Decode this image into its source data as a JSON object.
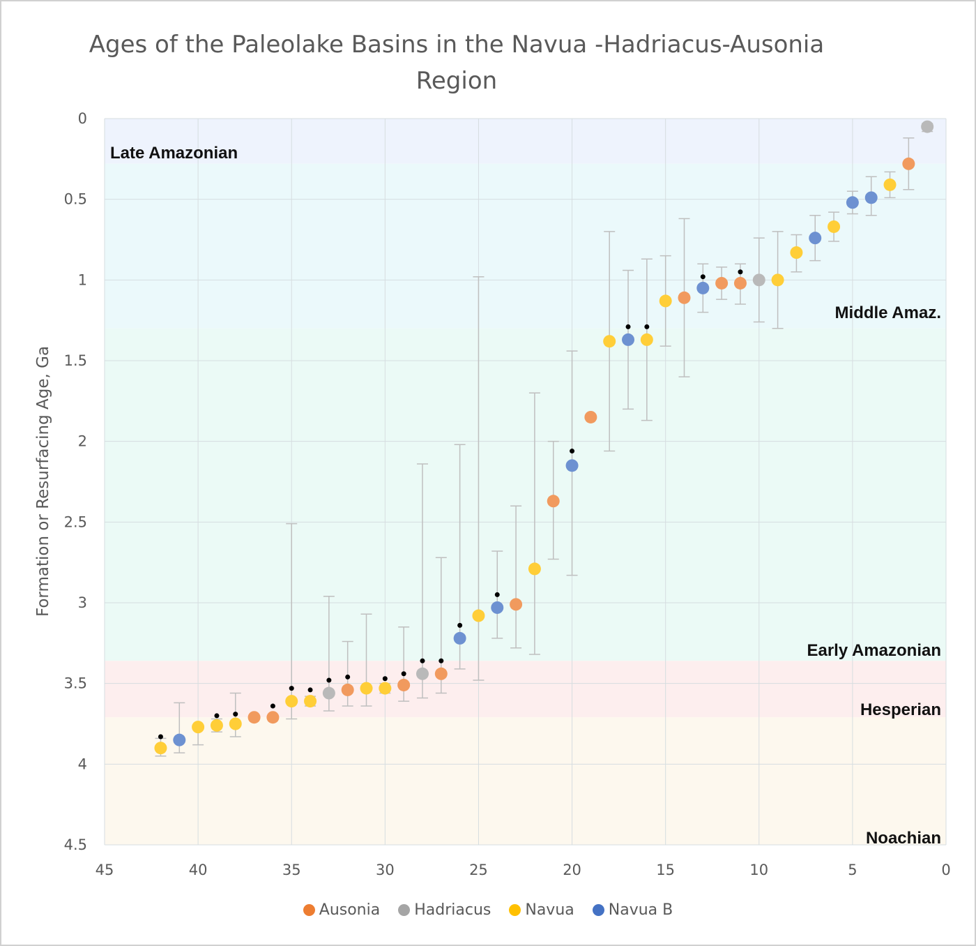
{
  "chart_data": {
    "type": "scatter",
    "title": "Ages of the Paleolake Basins in the Navua -Hadriacus-Ausonia Region",
    "ylabel": "Formation or Resurfacing Age, Ga",
    "xlabel": "",
    "xlim": [
      45,
      0
    ],
    "ylim": [
      0,
      4.5
    ],
    "x_reversed": true,
    "y_reversed": true,
    "x_ticks": [
      "45",
      "40",
      "35",
      "30",
      "25",
      "20",
      "15",
      "10",
      "5",
      "0"
    ],
    "y_ticks": [
      "0",
      "0.5",
      "1",
      "1.5",
      "2",
      "2.5",
      "3",
      "3.5",
      "4",
      "4.5"
    ],
    "grid": true,
    "legend_position": "bottom",
    "colors": {
      "Ausonia": "#ed7d31",
      "Hadriacus": "#a5a5a5",
      "Navua": "#ffc000",
      "Navua B": "#4472c4",
      "errorbar": "#bfbfbf",
      "marker": "#000000"
    },
    "bands": [
      {
        "label": "Late Amazonian",
        "from": 0,
        "to": 0.28,
        "color": "#eef3fd",
        "label_align": "left"
      },
      {
        "label": "Middle Amaz.",
        "from": 0.28,
        "to": 1.3,
        "color": "#ebf9fb",
        "label_align": "right"
      },
      {
        "label": "Early Amazonian",
        "from": 1.3,
        "to": 3.36,
        "color": "#ebfaf6",
        "label_align": "right"
      },
      {
        "label": "Hesperian",
        "from": 3.36,
        "to": 3.71,
        "color": "#fdeeee",
        "label_align": "right"
      },
      {
        "label": "Noachian",
        "from": 3.71,
        "to": 4.5,
        "color": "#fdf8ee",
        "label_align": "right"
      }
    ],
    "series": [
      {
        "name": "Ausonia",
        "points": [
          {
            "x": 37,
            "y": 3.71
          },
          {
            "x": 36,
            "y": 3.71,
            "marker": 3.64
          },
          {
            "x": 32,
            "y": 3.54,
            "lo": 3.24,
            "hi": 3.64,
            "marker": 3.46
          },
          {
            "x": 29,
            "y": 3.51,
            "lo": 3.15,
            "hi": 3.61,
            "marker": 3.44
          },
          {
            "x": 27,
            "y": 3.44,
            "lo": 2.72,
            "hi": 3.56,
            "marker": 3.36
          },
          {
            "x": 23,
            "y": 3.01,
            "lo": 2.4,
            "hi": 3.28
          },
          {
            "x": 21,
            "y": 2.37,
            "lo": 2.0,
            "hi": 2.73
          },
          {
            "x": 19,
            "y": 1.85
          },
          {
            "x": 14,
            "y": 1.11,
            "lo": 0.62,
            "hi": 1.6
          },
          {
            "x": 12,
            "y": 1.02,
            "lo": 0.92,
            "hi": 1.12
          },
          {
            "x": 11,
            "y": 1.02,
            "lo": 0.9,
            "hi": 1.15,
            "marker": 0.95
          },
          {
            "x": 2,
            "y": 0.28,
            "lo": 0.12,
            "hi": 0.44
          }
        ]
      },
      {
        "name": "Hadriacus",
        "points": [
          {
            "x": 33,
            "y": 3.56,
            "lo": 2.96,
            "hi": 3.67,
            "marker": 3.48
          },
          {
            "x": 28,
            "y": 3.44,
            "lo": 2.14,
            "hi": 3.59,
            "marker": 3.36
          },
          {
            "x": 10,
            "y": 1.0,
            "lo": 0.74,
            "hi": 1.26
          },
          {
            "x": 1,
            "y": 0.05,
            "lo": 0.03,
            "hi": 0.08
          }
        ]
      },
      {
        "name": "Navua",
        "points": [
          {
            "x": 42,
            "y": 3.9,
            "lo": 3.84,
            "hi": 3.95,
            "marker": 3.83
          },
          {
            "x": 40,
            "y": 3.77,
            "hi": 3.88
          },
          {
            "x": 39,
            "y": 3.76,
            "lo": 3.72,
            "hi": 3.8,
            "marker": 3.7
          },
          {
            "x": 38,
            "y": 3.75,
            "lo": 3.56,
            "hi": 3.83,
            "marker": 3.69
          },
          {
            "x": 35,
            "y": 3.61,
            "lo": 2.51,
            "hi": 3.72,
            "marker": 3.53
          },
          {
            "x": 34,
            "y": 3.61,
            "lo": 3.58,
            "hi": 3.64,
            "marker": 3.54
          },
          {
            "x": 31,
            "y": 3.53,
            "lo": 3.07,
            "hi": 3.64
          },
          {
            "x": 30,
            "y": 3.53,
            "lo": 3.5,
            "hi": 3.56,
            "marker": 3.47
          },
          {
            "x": 25,
            "y": 3.08,
            "lo": 0.98,
            "hi": 3.48
          },
          {
            "x": 22,
            "y": 2.79,
            "lo": 1.7,
            "hi": 3.32
          },
          {
            "x": 18,
            "y": 1.38,
            "lo": 0.7,
            "hi": 2.06
          },
          {
            "x": 16,
            "y": 1.37,
            "lo": 0.87,
            "hi": 1.87,
            "marker": 1.29
          },
          {
            "x": 15,
            "y": 1.13,
            "lo": 0.85,
            "hi": 1.41
          },
          {
            "x": 9,
            "y": 1.0,
            "lo": 0.7,
            "hi": 1.3
          },
          {
            "x": 8,
            "y": 0.83,
            "lo": 0.72,
            "hi": 0.95
          },
          {
            "x": 6,
            "y": 0.67,
            "lo": 0.58,
            "hi": 0.76
          },
          {
            "x": 3,
            "y": 0.41,
            "lo": 0.33,
            "hi": 0.49
          }
        ]
      },
      {
        "name": "Navua B",
        "points": [
          {
            "x": 41,
            "y": 3.85,
            "lo": 3.62,
            "hi": 3.93
          },
          {
            "x": 26,
            "y": 3.22,
            "lo": 2.02,
            "hi": 3.41,
            "marker": 3.14
          },
          {
            "x": 24,
            "y": 3.03,
            "lo": 2.68,
            "hi": 3.22,
            "marker": 2.95
          },
          {
            "x": 20,
            "y": 2.15,
            "lo": 1.44,
            "hi": 2.83,
            "marker": 2.06
          },
          {
            "x": 17,
            "y": 1.37,
            "lo": 0.94,
            "hi": 1.8,
            "marker": 1.29
          },
          {
            "x": 13,
            "y": 1.05,
            "lo": 0.9,
            "hi": 1.2,
            "marker": 0.98
          },
          {
            "x": 7,
            "y": 0.74,
            "lo": 0.6,
            "hi": 0.88
          },
          {
            "x": 5,
            "y": 0.52,
            "lo": 0.45,
            "hi": 0.59
          },
          {
            "x": 4,
            "y": 0.49,
            "lo": 0.36,
            "hi": 0.6
          }
        ]
      }
    ]
  }
}
